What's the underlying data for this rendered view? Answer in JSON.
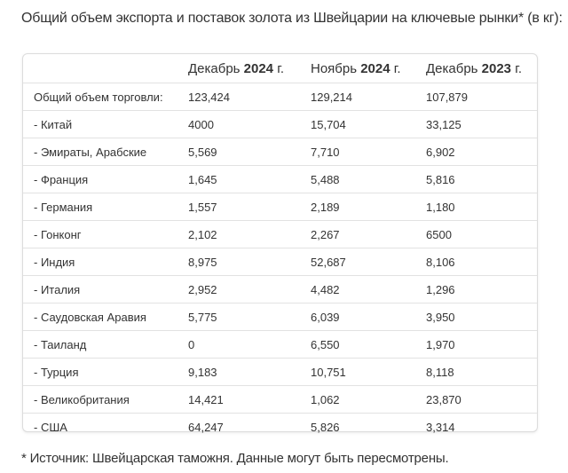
{
  "title": "Общий объем экспорта и поставок золота из Швейцарии на ключевые рынки* (в кг):",
  "table": {
    "headers": [
      {
        "prefix": "",
        "bold": "",
        "suffix": ""
      },
      {
        "prefix": "Декабрь ",
        "bold": "2024",
        "suffix": " г."
      },
      {
        "prefix": "Ноябрь ",
        "bold": "2024",
        "suffix": " г."
      },
      {
        "prefix": "Декабрь ",
        "bold": "2023",
        "suffix": " г."
      }
    ],
    "rows": [
      {
        "label": "Общий объем торговли:",
        "values": [
          "123,424",
          "129,214",
          "107,879"
        ]
      },
      {
        "label": "- Китай",
        "values": [
          "4000",
          "15,704",
          "33,125"
        ]
      },
      {
        "label": "- Эмираты, Арабские",
        "values": [
          "5,569",
          "7,710",
          "6,902"
        ]
      },
      {
        "label": "- Франция",
        "values": [
          "1,645",
          "5,488",
          "5,816"
        ]
      },
      {
        "label": "- Германия",
        "values": [
          "1,557",
          "2,189",
          "1,180"
        ]
      },
      {
        "label": "- Гонконг",
        "values": [
          "2,102",
          "2,267",
          "6500"
        ]
      },
      {
        "label": "- Индия",
        "values": [
          "8,975",
          "52,687",
          "8,106"
        ]
      },
      {
        "label": "- Италия",
        "values": [
          "2,952",
          "4,482",
          "1,296"
        ]
      },
      {
        "label": "- Саудовская Аравия",
        "values": [
          "5,775",
          "6,039",
          "3,950"
        ]
      },
      {
        "label": "- Таиланд",
        "values": [
          "0",
          "6,550",
          "1,970"
        ]
      },
      {
        "label": "- Турция",
        "values": [
          "9,183",
          "10,751",
          "8,118"
        ]
      },
      {
        "label": "- Великобритания",
        "values": [
          "14,421",
          "1,062",
          "23,870"
        ]
      },
      {
        "label": "- США",
        "values": [
          "64,247",
          "5,826",
          "3,314"
        ]
      }
    ]
  },
  "footnote": "* Источник: Швейцарская таможня. Данные могут быть пересмотрены."
}
